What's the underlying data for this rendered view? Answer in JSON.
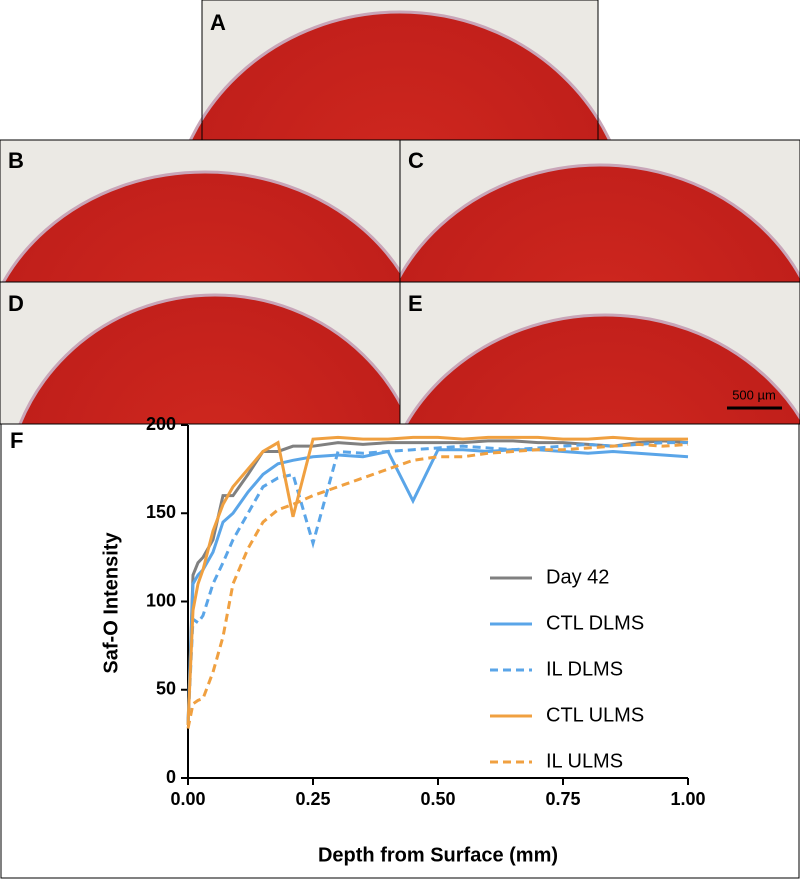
{
  "panels": [
    {
      "label": "A"
    },
    {
      "label": "B"
    },
    {
      "label": "C"
    },
    {
      "label": "D"
    },
    {
      "label": "E"
    }
  ],
  "scale_bar": "500 µm",
  "chart_data": {
    "type": "line",
    "panel_label": "F",
    "x_label": "Depth from Surface (mm)",
    "y_label": "Saf-O Intensity",
    "xlim": [
      0,
      1
    ],
    "ylim": [
      0,
      200
    ],
    "xticks": [
      {
        "value": 0,
        "label": "0.00"
      },
      {
        "value": 0.25,
        "label": "0.25"
      },
      {
        "value": 0.5,
        "label": "0.50"
      },
      {
        "value": 0.75,
        "label": "0.75"
      },
      {
        "value": 1,
        "label": "1.00"
      }
    ],
    "yticks": [
      0,
      50,
      100,
      150,
      200
    ],
    "x": [
      0,
      0.01,
      0.02,
      0.03,
      0.05,
      0.07,
      0.09,
      0.12,
      0.15,
      0.18,
      0.21,
      0.25,
      0.3,
      0.35,
      0.4,
      0.45,
      0.5,
      0.55,
      0.6,
      0.65,
      0.7,
      0.75,
      0.8,
      0.85,
      0.9,
      0.95,
      1.0
    ],
    "series": [
      {
        "name": "Day 42",
        "color": "#808080",
        "dashed": false,
        "values": [
          30,
          115,
          122,
          125,
          135,
          160,
          160,
          172,
          185,
          185,
          188,
          188,
          190,
          189,
          190,
          190,
          190,
          190,
          191,
          191,
          190,
          190,
          189,
          188,
          190,
          191,
          190
        ]
      },
      {
        "name": "CTL DLMS",
        "color": "#5aa5e8",
        "dashed": false,
        "values": [
          30,
          110,
          115,
          118,
          128,
          145,
          150,
          162,
          172,
          178,
          180,
          182,
          183,
          182,
          185,
          157,
          186,
          186,
          185,
          186,
          186,
          185,
          184,
          185,
          184,
          183,
          182
        ]
      },
      {
        "name": "IL DLMS",
        "color": "#5aa5e8",
        "dashed": true,
        "values": [
          30,
          90,
          88,
          92,
          110,
          122,
          135,
          150,
          165,
          170,
          172,
          133,
          185,
          184,
          185,
          186,
          187,
          188,
          187,
          186,
          187,
          188,
          189,
          188,
          189,
          190,
          190
        ]
      },
      {
        "name": "CTL ULMS",
        "color": "#f0a040",
        "dashed": false,
        "values": [
          30,
          95,
          110,
          118,
          140,
          155,
          165,
          175,
          185,
          190,
          148,
          192,
          193,
          192,
          192,
          193,
          193,
          192,
          193,
          193,
          193,
          192,
          192,
          193,
          192,
          192,
          192
        ]
      },
      {
        "name": "IL ULMS",
        "color": "#f0a040",
        "dashed": true,
        "values": [
          28,
          42,
          44,
          45,
          60,
          80,
          110,
          130,
          145,
          152,
          155,
          160,
          165,
          170,
          175,
          180,
          182,
          182,
          184,
          185,
          186,
          186,
          187,
          188,
          189,
          188,
          189
        ]
      }
    ]
  }
}
